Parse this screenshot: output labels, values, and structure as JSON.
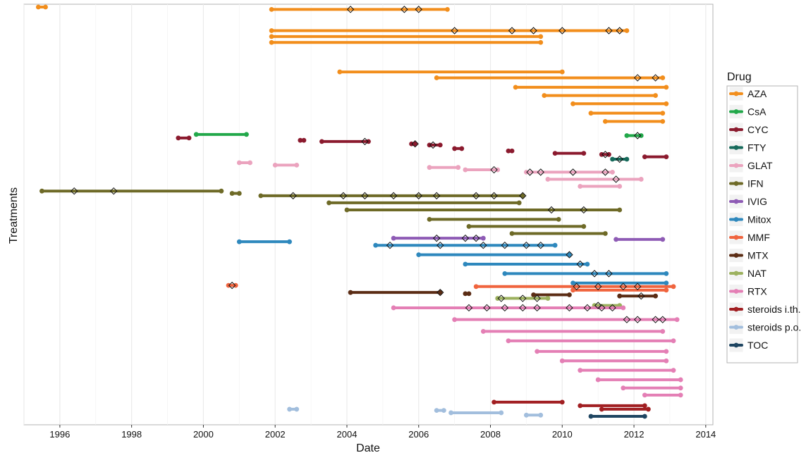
{
  "chart_data": {
    "type": "timeline",
    "xlabel": "Date",
    "ylabel": "Treatments",
    "xlim": [
      1995.0,
      2014.2
    ],
    "x_ticks": [
      {
        "value": 1996,
        "label": "1996"
      },
      {
        "value": 1998,
        "label": "1998"
      },
      {
        "value": 2000,
        "label": "2000"
      },
      {
        "value": 2002,
        "label": "2002"
      },
      {
        "value": 2004,
        "label": "2004"
      },
      {
        "value": 2006,
        "label": "2006"
      },
      {
        "value": 2008,
        "label": "2008"
      },
      {
        "value": 2010,
        "label": "2010"
      },
      {
        "value": 2012,
        "label": "2012"
      },
      {
        "value": 2014,
        "label": "2014"
      }
    ],
    "grid": true,
    "legend": {
      "title": "Drug",
      "position": "right"
    },
    "series": [
      {
        "name": "AZA",
        "color": "#F28E1C",
        "segments": [
          {
            "start": 1995.4,
            "end": 1995.6,
            "row": 0.0
          },
          {
            "start": 2001.9,
            "end": 2006.8,
            "row": 0.2
          },
          {
            "start": 2001.9,
            "end": 2011.8,
            "row": 2.0
          },
          {
            "start": 2001.9,
            "end": 2009.4,
            "row": 2.5
          },
          {
            "start": 2001.9,
            "end": 2009.4,
            "row": 3.0
          },
          {
            "start": 2003.8,
            "end": 2010.0,
            "row": 5.5
          },
          {
            "start": 2006.5,
            "end": 2012.8,
            "row": 6.0
          },
          {
            "start": 2008.7,
            "end": 2012.9,
            "row": 6.8
          },
          {
            "start": 2009.5,
            "end": 2012.6,
            "row": 7.5
          },
          {
            "start": 2010.3,
            "end": 2012.9,
            "row": 8.2
          },
          {
            "start": 2010.8,
            "end": 2012.8,
            "row": 9.0
          },
          {
            "start": 2011.2,
            "end": 2012.8,
            "row": 9.7
          }
        ],
        "markers": [
          2004.1,
          2005.6,
          2006.0,
          2007.0,
          2008.6,
          2009.2,
          2010.0,
          2011.3,
          2011.6,
          2012.1,
          2012.6
        ]
      },
      {
        "name": "CsA",
        "color": "#22A84A",
        "segments": [
          {
            "start": 1999.8,
            "end": 2001.2,
            "row": 10.8
          },
          {
            "start": 2011.8,
            "end": 2012.2,
            "row": 10.9
          }
        ],
        "markers": [
          2012.1
        ]
      },
      {
        "name": "CYC",
        "color": "#8B1A2E",
        "segments": [
          {
            "start": 1999.3,
            "end": 1999.6,
            "row": 11.1
          },
          {
            "start": 2002.7,
            "end": 2002.8,
            "row": 11.3
          },
          {
            "start": 2003.3,
            "end": 2004.6,
            "row": 11.4
          },
          {
            "start": 2005.8,
            "end": 2005.9,
            "row": 11.6
          },
          {
            "start": 2006.3,
            "end": 2006.6,
            "row": 11.7
          },
          {
            "start": 2007.0,
            "end": 2007.2,
            "row": 12.0
          },
          {
            "start": 2008.5,
            "end": 2008.6,
            "row": 12.2
          },
          {
            "start": 2009.8,
            "end": 2010.6,
            "row": 12.4
          },
          {
            "start": 2011.1,
            "end": 2011.3,
            "row": 12.5
          },
          {
            "start": 2012.3,
            "end": 2012.9,
            "row": 12.7
          }
        ],
        "markers": [
          2004.5,
          2005.9,
          2006.4,
          2011.2
        ]
      },
      {
        "name": "FTY",
        "color": "#176A5B",
        "segments": [
          {
            "start": 2011.4,
            "end": 2011.8,
            "row": 12.9
          }
        ],
        "markers": [
          2011.6
        ]
      },
      {
        "name": "GLAT",
        "color": "#EBA3BE",
        "segments": [
          {
            "start": 2001.0,
            "end": 2001.3,
            "row": 13.2
          },
          {
            "start": 2002.0,
            "end": 2002.6,
            "row": 13.4
          },
          {
            "start": 2006.3,
            "end": 2007.1,
            "row": 13.6
          },
          {
            "start": 2007.3,
            "end": 2008.2,
            "row": 13.8
          },
          {
            "start": 2009.0,
            "end": 2011.4,
            "row": 14.0
          },
          {
            "start": 2009.6,
            "end": 2012.2,
            "row": 14.6
          },
          {
            "start": 2010.5,
            "end": 2011.6,
            "row": 15.2
          }
        ],
        "markers": [
          2008.1,
          2009.1,
          2009.4,
          2010.3,
          2011.2,
          2011.5
        ]
      },
      {
        "name": "IFN",
        "color": "#6E6A27",
        "segments": [
          {
            "start": 1995.5,
            "end": 2000.5,
            "row": 15.6
          },
          {
            "start": 2000.8,
            "end": 2001.0,
            "row": 15.8
          },
          {
            "start": 2001.6,
            "end": 2008.9,
            "row": 16.0
          },
          {
            "start": 2003.5,
            "end": 2008.8,
            "row": 16.6
          },
          {
            "start": 2004.0,
            "end": 2011.6,
            "row": 17.2
          },
          {
            "start": 2006.3,
            "end": 2009.9,
            "row": 18.0
          },
          {
            "start": 2007.4,
            "end": 2010.6,
            "row": 18.6
          },
          {
            "start": 2008.6,
            "end": 2011.2,
            "row": 19.2
          }
        ],
        "markers": [
          1996.4,
          1997.5,
          2002.5,
          2003.9,
          2004.5,
          2005.3,
          2006.0,
          2006.5,
          2007.6,
          2008.1,
          2008.9,
          2009.7,
          2010.6
        ]
      },
      {
        "name": "IVIG",
        "color": "#8E5BB5",
        "segments": [
          {
            "start": 2005.3,
            "end": 2007.8,
            "row": 19.6
          },
          {
            "start": 2011.5,
            "end": 2012.8,
            "row": 19.7
          }
        ],
        "markers": [
          2006.5,
          2007.3,
          2007.6
        ]
      },
      {
        "name": "Mitox",
        "color": "#2E88BD",
        "segments": [
          {
            "start": 2001.0,
            "end": 2002.4,
            "row": 19.9
          },
          {
            "start": 2004.8,
            "end": 2009.8,
            "row": 20.2
          },
          {
            "start": 2006.0,
            "end": 2010.2,
            "row": 21.0
          },
          {
            "start": 2007.3,
            "end": 2010.7,
            "row": 21.8
          },
          {
            "start": 2008.4,
            "end": 2012.9,
            "row": 22.6
          },
          {
            "start": 2010.3,
            "end": 2012.9,
            "row": 23.4
          }
        ],
        "markers": [
          2005.2,
          2006.6,
          2007.8,
          2008.4,
          2009.0,
          2009.4,
          2010.2,
          2010.5,
          2010.9,
          2011.3
        ]
      },
      {
        "name": "MMF",
        "color": "#F0643E",
        "segments": [
          {
            "start": 2000.7,
            "end": 2000.9,
            "row": 23.6
          },
          {
            "start": 2007.6,
            "end": 2013.1,
            "row": 23.7
          },
          {
            "start": 2010.3,
            "end": 2012.9,
            "row": 24.0
          }
        ],
        "markers": [
          2000.8,
          2010.4,
          2011.0,
          2011.7,
          2012.1
        ]
      },
      {
        "name": "MTX",
        "color": "#5B2C14",
        "segments": [
          {
            "start": 2004.1,
            "end": 2006.6,
            "row": 24.2
          },
          {
            "start": 2007.3,
            "end": 2007.4,
            "row": 24.3
          },
          {
            "start": 2009.2,
            "end": 2010.2,
            "row": 24.4
          },
          {
            "start": 2011.6,
            "end": 2012.6,
            "row": 24.5
          }
        ],
        "markers": [
          2006.6,
          2012.2
        ]
      },
      {
        "name": "NAT",
        "color": "#9CB15E",
        "segments": [
          {
            "start": 2008.2,
            "end": 2009.6,
            "row": 24.7
          },
          {
            "start": 2010.9,
            "end": 2011.6,
            "row": 25.3
          }
        ],
        "markers": [
          2008.3,
          2008.9,
          2009.3,
          2011.0
        ]
      },
      {
        "name": "RTX",
        "color": "#E47FB5",
        "segments": [
          {
            "start": 2005.3,
            "end": 2011.7,
            "row": 25.5
          },
          {
            "start": 2007.0,
            "end": 2013.2,
            "row": 26.5
          },
          {
            "start": 2007.8,
            "end": 2012.8,
            "row": 27.5
          },
          {
            "start": 2008.5,
            "end": 2013.1,
            "row": 28.3
          },
          {
            "start": 2009.3,
            "end": 2012.9,
            "row": 29.2
          },
          {
            "start": 2010.0,
            "end": 2012.9,
            "row": 30.0
          },
          {
            "start": 2010.5,
            "end": 2013.1,
            "row": 30.8
          },
          {
            "start": 2011.0,
            "end": 2013.3,
            "row": 31.6
          },
          {
            "start": 2011.7,
            "end": 2013.3,
            "row": 32.3
          },
          {
            "start": 2012.3,
            "end": 2013.3,
            "row": 32.9
          }
        ],
        "markers": [
          2007.4,
          2007.9,
          2008.4,
          2008.9,
          2009.3,
          2010.2,
          2010.7,
          2011.1,
          2011.4,
          2011.8,
          2012.1,
          2012.6,
          2012.8
        ]
      },
      {
        "name": "steroids i.th.",
        "color": "#A11F22",
        "segments": [
          {
            "start": 2008.1,
            "end": 2010.0,
            "row": 33.5
          },
          {
            "start": 2010.5,
            "end": 2012.3,
            "row": 33.8
          },
          {
            "start": 2011.1,
            "end": 2012.4,
            "row": 34.1
          }
        ],
        "markers": []
      },
      {
        "name": "steroids p.o.",
        "color": "#A2BEDD",
        "segments": [
          {
            "start": 2002.4,
            "end": 2002.6,
            "row": 34.1
          },
          {
            "start": 2006.5,
            "end": 2006.7,
            "row": 34.2
          },
          {
            "start": 2006.9,
            "end": 2008.3,
            "row": 34.4
          },
          {
            "start": 2009.0,
            "end": 2009.4,
            "row": 34.6
          }
        ],
        "markers": []
      },
      {
        "name": "TOC",
        "color": "#1E4561",
        "segments": [
          {
            "start": 2010.8,
            "end": 2012.3,
            "row": 34.7
          }
        ],
        "markers": []
      }
    ]
  }
}
